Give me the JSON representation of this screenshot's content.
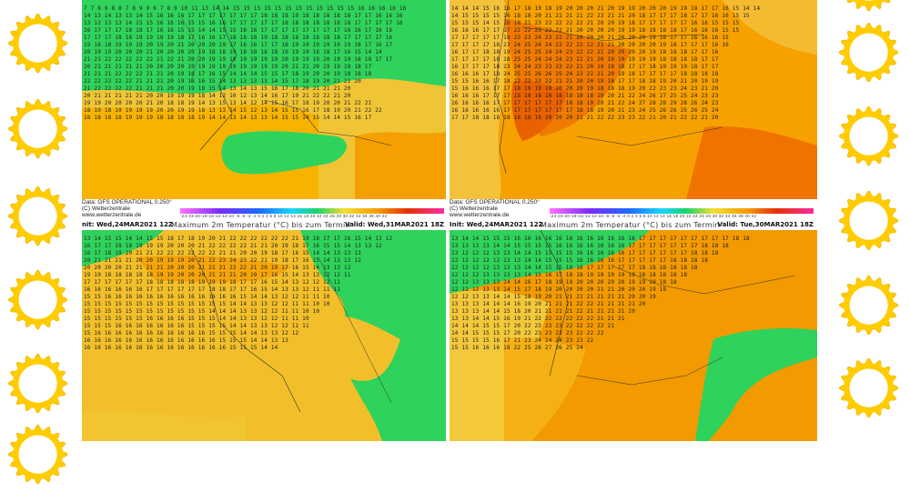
{
  "panels": [
    {
      "id": "top-left",
      "data_line": "Data: GFS OPERATIONAL 0.250°",
      "copyright": "(C) Wetterzentrale",
      "website": "www.wetterzentrale.de",
      "scale_ticks": "-24-23-20-18-16-14-12-10 -8 -6 -4 -2 0 2 4 6 8 10 12 14 16 18 20 22 24 26 28 30 32 34 36 38 40 42"
    },
    {
      "id": "top-right",
      "data_line": "Data: GFS OPERATIONAL 0.250°",
      "copyright": "(C) Wetterzentrale",
      "website": "www.wetterzentrale.de",
      "scale_ticks": "-24-23-20-18-16-14-12-10 -8 -6 -4 -2 0 2 4 6 8 10 12 14 16 18 20 22 24 26 28 30 32 34 36 38 40 42"
    },
    {
      "id": "bottom-left",
      "init": "nit: Wed,24MAR2021 12Z",
      "title": "Maximum 2m Temperatur (°C) bis zum Termin",
      "valid": "Valid: Wed,31MAR2021 18Z"
    },
    {
      "id": "bottom-right",
      "init": "Init: Wed,24MAR2021 12Z",
      "title": "Maximum 2m Temperatur (°C) bis zum Termin",
      "valid": "Valid: Tue,30MAR2021 18Z"
    }
  ],
  "temperature_grids": {
    "top-left": [
      "7 7 8 9 8 8 7 8 9 9 6 7 8 9 10 11 13 14 14 15 15 15 15 15 15 15 15 15 15 15 15 16 16 16 16 16",
      "14 13 14 13 13 14 15 16 16 16 17 17 17 17 17 17 17 18 18 18 19 18 18 18 18 18 17 17 16 16 16",
      "13 12 13 13 14 15 15 16 16 16 15 15 16 16 17 17 17 17 17 18 18 18 18 18 18 18 17 17 17 17 16",
      "16 17 17 17 18 18 17 16 16 15 15 14 14 15 15 16 16 17 17 17 17 17 17 17 17 16 16 17 16 16",
      "17 17 17 18 18 19 19 18 19 18 17 16 16 17 18 18 18 19 18 18 18 18 18 18 18 17 17 17 17 16",
      "19 18 18 19 19 19 20 19 20 21 20 20 20 19 17 16 16 17 17 18 19 19 19 19 19 19 18 17 16 17",
      "20 19 19 20 20 20 21 20 20 20 20 19 18 18 19 18 18 18 18 19 19 19 18 18 17 16 15 14 14",
      "21 21 22 22 22 22 22 21 22 21 20 20 19 19 19 19 19 19 19 20 19 19 19 20 19 19 18 18 17 17",
      "20 21 21 21 21 21 20 20 20 20 19 19 19 19 19 19 19 19 19 20 21 21 20 19 19 18 18 17",
      "21 21 21 22 22 22 21 21 20 19 18 17 16 15 14 14 14 15 15 17 18 19 20 20 19 18 18 18",
      "22 22 22 22 22 21 21 21 20 19 18 16 15 14 13 13 13 13 14 15 17 18 19 20 21 21 20",
      "21 22 22 22 22 21 21 21 20 20 19 18 15 14 13 14 13 15 16 17 18 20 21 21 21 20",
      "20 21 21 21 21 21 20 20 19 19 19 18 14 12 10 12 13 14 16 17 19 21 22 22 21 20",
      "19 19 20 20 20 20 21 20 18 18 19 14 13 15 13 14 12 14 15 16 17 18 19 20 20 21 22 21",
      "18 19 18 19 19 19 19 20 20 19 19 18 13 13 14 15 12 13 14 15 15 16 17 18 19 20 21 22 22",
      "18 18 18 18 19 19 19 18 18 18 18 19 14 14 13 14 13 13 14 15 15 14 15 14 14 15 16 17"
    ],
    "top-right": [
      "14 14 14 15 16 16 17 18 19 18 19 20 20 20 21 20 19 19 20 20 20 19 19 18 17 17 16 15 14 14",
      "14 15 15 15 15 16 18 18 20 21 21 21 21 22 23 21 21 20 18 17 17 17 18 17 17 16 16 15 15",
      "15 15 15 14 15 16 18 21 23 22 22 22 22 21 20 20 19 18 17 17 17 17 17 16 16 15 15 15",
      "16 16 16 17 17 17 22 22 23 22 22 21 20 20 20 20 19 19 18 18 18 18 17 16 16 16 15 15",
      "17 17 17 17 17 18 23 23 24 23 22 21 20 20 20 21 20 20 20 19 18 17 17 16 16 16 15",
      "17 17 17 17 18 23 24 25 24 24 23 22 22 22 21 21 20 20 20 20 19 18 17 17 17 16 16",
      "16 17 17 18 18 19 24 25 25 24 24 23 22 22 21 20 20 20 20 19 18 18 18 17 17 16",
      "17 17 17 17 18 18 23 25 24 24 24 23 22 21 20 19 19 19 19 19 18 18 18 18 17 17",
      "16 17 17 17 18 23 24 24 23 23 23 22 21 20 19 18 18 17 17 18 19 19 19 18 17 17",
      "16 16 16 17 18 24 25 25 26 26 25 24 23 22 21 20 19 18 17 17 17 17 18 18 18 18",
      "15 15 16 16 17 18 22 22 23 22 21 21 20 20 19 18 17 17 18 18 19 20 21 20 19 19",
      "15 16 16 16 17 17 18 19 19 19 20 20 20 19 18 18 18 19 20 22 23 23 24 23 21 20",
      "16 16 16 17 17 17 18 18 18 18 18 18 18 18 19 20 21 22 24 26 27 25 25 24 23 23",
      "16 16 16 16 17 17 17 17 17 17 17 18 18 19 20 21 22 24 27 28 28 29 28 26 24 23",
      "16 16 16 16 16 17 17 17 17 17 17 17 18 18 19 20 21 23 24 25 26 26 25 26 25 24",
      "17 17 18 18 18 18 18 18 19 20 20 20 21 21 22 22 23 23 22 21 20 21 22 22 21 20"
    ],
    "bottom-left": [
      "13 14 15 15 14 14 15 15 16 17 18 19 20 21 22 22 22 22 22 22 21 19 18 17 17 16 15 14 13 12",
      "16 17 17 18 18 19 19 19 20 20 20 21 22 22 22 22 21 21 20 19 18 17 16 15 15 14 13 13 12",
      "16 17 18 19 20 21 21 22 22 22 22 22 22 21 21 20 20 19 18 17 16 15 14 14 13 13 13",
      "20 21 21 21 21 20 20 19 19 19 20 21 22 23 24 23 22 21 19 18 17 16 15 14 13 13 12",
      "20 20 20 20 21 21 21 21 20 20 20 21 21 21 22 22 21 20 19 17 16 15 14 13 13 12",
      "19 19 18 18 18 18 18 19 19 20 20 20 21 21 21 20 19 17 16 15 14 13 13 12 12 11",
      "17 17 17 17 17 17 18 18 18 18 18 19 19 19 18 17 17 16 15 14 13 12 12 12 11",
      "16 16 16 16 16 16 17 17 17 17 17 17 18 18 17 17 16 15 14 13 13 12 11 11 11",
      "15 15 16 16 16 16 16 16 16 16 16 16 16 16 16 15 14 14 13 12 12 11 11 10",
      "15 15 15 15 15 15 15 15 15 15 15 15 15 15 14 14 13 13 12 12 11 11 10 10",
      "15 15 15 15 15 15 15 15 15 15 15 15 14 14 14 13 13 12 12 11 11 10 10",
      "15 15 15 15 15 15 16 16 16 16 15 15 15 14 14 13 13 12 12 11 11 10",
      "15 15 15 16 16 16 16 16 16 16 15 15 15 15 14 14 13 13 12 12 11 11",
      "15 16 16 16 16 16 16 16 16 16 16 16 15 15 15 14 14 13 13 12 12",
      "16 16 16 16 16 16 16 16 16 16 16 16 16 15 15 15 14 14 13 13",
      "16 16 16 16 16 16 16 16 16 16 16 16 16 16 15 15 15 14 14"
    ],
    "bottom-right": [
      "13 14 14 15 15 15 16 16 16 16 16 16 16 16 16 16 16 16 17 17 17 17 17 17 17 17 17 18 18",
      "13 13 13 13 14 14 15 15 15 15 16 16 16 16 16 16 16 17 17 17 17 17 17 17 18 18 18",
      "13 12 12 12 13 13 14 14 15 15 15 15 16 16 16 16 16 17 17 17 17 17 17 18 18 18",
      "12 12 12 12 12 13 13 14 14 15 15 15 16 16 16 16 17 17 17 17 17 18 18 18 18",
      "12 12 12 12 13 13 13 14 14 15 15 16 16 17 17 17 17 17 18 18 18 18 18 18",
      "12 12 12 13 13 13 13 14 15 16 17 18 18 19 19 19 19 19 18 18 18 18 18",
      "12 12 13 13 13 14 14 16 17 18 19 19 20 20 20 20 20 19 19 19 18 18",
      "12 12 12 13 13 14 15 17 18 19 20 20 20 20 21 21 20 20 20 19 19",
      "12 12 13 13 14 14 15 18 19 20 21 21 21 21 21 21 21 20 20 19",
      "13 13 13 14 14 14 16 19 20 21 21 21 22 22 21 21 21 21 20",
      "13 13 13 14 14 15 18 20 21 21 21 21 22 21 21 21 21 20",
      "13 13 14 14 15 16 19 21 22 22 22 22 22 22 21 21 21",
      "14 14 14 15 15 17 20 22 23 23 23 22 22 22 22 21",
      "14 14 15 15 15 17 20 22 23 23 23 23 22 22 22",
      "15 15 15 15 16 17 21 23 24 24 24 23 23 22",
      "15 15 16 16 16 18 22 25 26 27 26 25 24"
    ]
  }
}
